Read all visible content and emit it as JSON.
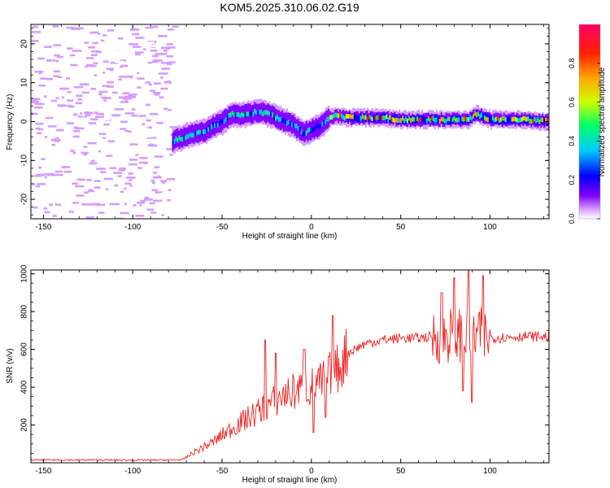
{
  "title": "KOM5.2025.310.06.02.G19",
  "chart_data": [
    {
      "type": "heatmap",
      "panel": "spectrogram",
      "xlabel": "Height of straight line (km)",
      "ylabel": "Frequency (Hz)",
      "xlim": [
        -157,
        133
      ],
      "ylim": [
        -25,
        25
      ],
      "xticks": [
        -150,
        -100,
        -50,
        0,
        50,
        100
      ],
      "yticks": [
        20,
        10,
        0,
        -10,
        -20
      ],
      "colorbar": {
        "label": "Normalized spectral amplitude",
        "range": [
          0,
          1
        ],
        "ticks": [
          "0.0",
          "0.2",
          "0.4",
          "0.6",
          "0.8"
        ],
        "colors": [
          "#ffffff",
          "#d59cff",
          "#8000ff",
          "#0000ff",
          "#00ccff",
          "#00ff66",
          "#ccff00",
          "#ffaa00",
          "#ff2200",
          "#ff0066"
        ]
      },
      "ridge_frequency_hz": {
        "x": [
          -78,
          -72,
          -66,
          -60,
          -55,
          -50,
          -45,
          -40,
          -35,
          -30,
          -25,
          -20,
          -15,
          -10,
          -5,
          0,
          5,
          10,
          15,
          20,
          30,
          40,
          50,
          60,
          70,
          80,
          85,
          88,
          92,
          95,
          100,
          110,
          120,
          133
        ],
        "y": [
          -5,
          -4,
          -3,
          -2.5,
          -1,
          0,
          2,
          1.5,
          2,
          2.5,
          2,
          1,
          0,
          -1,
          -3,
          -2,
          -1,
          1,
          1.5,
          1,
          1,
          1,
          0.5,
          0.5,
          0.5,
          0.5,
          0.5,
          0.5,
          2,
          1.5,
          0.5,
          0.5,
          0.5,
          0
        ]
      },
      "noise_region_x": [
        -157,
        -78
      ]
    },
    {
      "type": "line",
      "panel": "snr",
      "xlabel": "Height of straight line (km)",
      "ylabel": "SNR (v/v)",
      "xlim": [
        -157,
        133
      ],
      "ylim": [
        0,
        1020
      ],
      "xticks": [
        -150,
        -100,
        -50,
        0,
        50,
        100
      ],
      "yticks": [
        200,
        400,
        600,
        800,
        1000
      ],
      "color": "#ee2222",
      "envelope": {
        "x": [
          -157,
          -120,
          -100,
          -80,
          -72,
          -65,
          -55,
          -45,
          -35,
          -25,
          -15,
          -5,
          0,
          5,
          10,
          15,
          20,
          30,
          40,
          50,
          60,
          70,
          80,
          90,
          95,
          100,
          110,
          120,
          133
        ],
        "y": [
          15,
          15,
          14,
          15,
          16,
          60,
          110,
          180,
          240,
          300,
          360,
          390,
          400,
          420,
          460,
          500,
          580,
          630,
          650,
          660,
          660,
          670,
          680,
          680,
          670,
          660,
          665,
          670,
          665
        ]
      },
      "spikes": [
        {
          "x": -26,
          "y": 650
        },
        {
          "x": -20,
          "y": 580
        },
        {
          "x": -4,
          "y": 600
        },
        {
          "x": 1,
          "y": 160
        },
        {
          "x": 12,
          "y": 780
        },
        {
          "x": 8,
          "y": 240
        },
        {
          "x": 73,
          "y": 900
        },
        {
          "x": 80,
          "y": 980
        },
        {
          "x": 88,
          "y": 1020
        },
        {
          "x": 90,
          "y": 320
        },
        {
          "x": 96,
          "y": 990
        },
        {
          "x": 85,
          "y": 380
        }
      ]
    }
  ]
}
